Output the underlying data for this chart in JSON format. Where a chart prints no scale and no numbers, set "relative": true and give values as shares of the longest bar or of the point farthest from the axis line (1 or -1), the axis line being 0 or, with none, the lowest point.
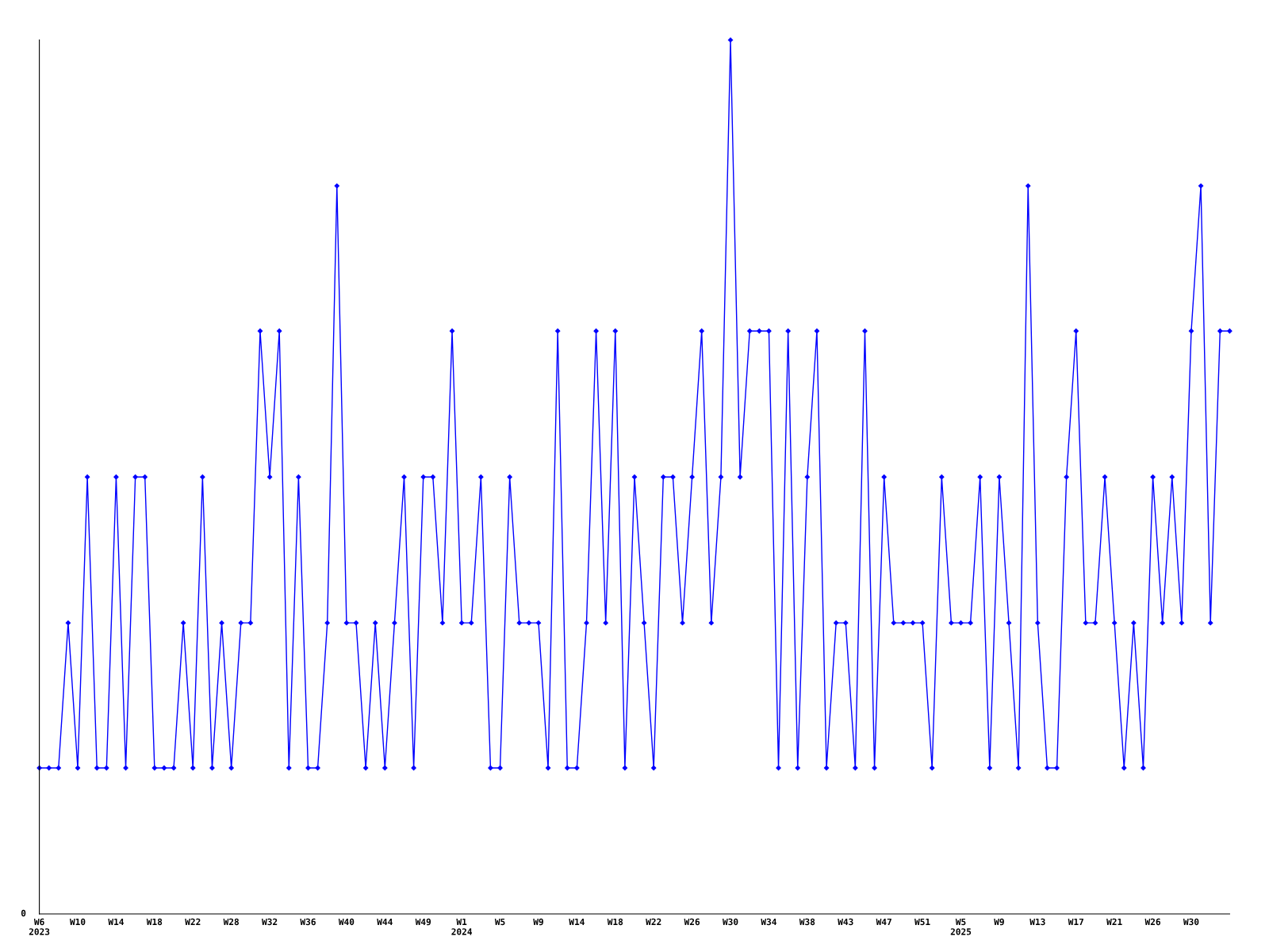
{
  "chart_data": {
    "type": "line",
    "relative": true,
    "color": "#0000ff",
    "marker": "diamond",
    "line_style": "solid",
    "grid": false,
    "legend": false,
    "annotations": [
      "0"
    ],
    "categories": [
      "W6\n2023",
      null,
      null,
      null,
      "W10",
      null,
      null,
      null,
      "W14",
      null,
      null,
      null,
      "W18",
      null,
      null,
      null,
      "W22",
      null,
      null,
      null,
      "W28",
      null,
      null,
      null,
      "W32",
      null,
      null,
      null,
      "W36",
      null,
      null,
      null,
      "W40",
      null,
      null,
      null,
      "W44",
      null,
      null,
      null,
      "W49",
      null,
      null,
      null,
      "W1\n2024",
      null,
      null,
      null,
      "W5",
      null,
      null,
      null,
      "W9",
      null,
      null,
      null,
      "W14",
      null,
      null,
      null,
      "W18",
      null,
      null,
      null,
      "W22",
      null,
      null,
      null,
      "W26",
      null,
      null,
      null,
      "W30",
      null,
      null,
      null,
      "W34",
      null,
      null,
      null,
      "W38",
      null,
      null,
      null,
      "W43",
      null,
      null,
      null,
      "W47",
      null,
      null,
      null,
      "W51",
      null,
      null,
      null,
      "W5\n2025",
      null,
      null,
      null,
      "W9",
      null,
      null,
      null,
      "W13",
      null,
      null,
      null,
      "W17",
      null,
      null,
      null,
      "W21",
      null,
      null,
      null,
      "W26",
      null,
      null,
      null,
      "W30",
      null,
      null,
      null,
      null
    ],
    "values": [
      0.167,
      0.167,
      0.167,
      0.333,
      0.167,
      0.5,
      0.167,
      0.167,
      0.5,
      0.167,
      0.5,
      0.5,
      0.167,
      0.167,
      0.167,
      0.333,
      0.167,
      0.5,
      0.167,
      0.333,
      0.167,
      0.333,
      0.333,
      0.667,
      0.5,
      0.667,
      0.167,
      0.5,
      0.167,
      0.167,
      0.333,
      0.833,
      0.333,
      0.333,
      0.167,
      0.333,
      0.167,
      0.333,
      0.5,
      0.167,
      0.5,
      0.5,
      0.333,
      0.667,
      0.333,
      0.333,
      0.5,
      0.167,
      0.167,
      0.5,
      0.333,
      0.333,
      0.333,
      0.167,
      0.667,
      0.167,
      0.167,
      0.333,
      0.667,
      0.333,
      0.667,
      0.167,
      0.5,
      0.333,
      0.167,
      0.5,
      0.5,
      0.333,
      0.5,
      0.667,
      0.333,
      0.5,
      1,
      0.5,
      0.667,
      0.667,
      0.667,
      0.167,
      0.667,
      0.167,
      0.5,
      0.667,
      0.167,
      0.333,
      0.333,
      0.167,
      0.667,
      0.167,
      0.5,
      0.333,
      0.333,
      0.333,
      0.333,
      0.167,
      0.5,
      0.333,
      0.333,
      0.333,
      0.5,
      0.167,
      0.5,
      0.333,
      0.167,
      0.833,
      0.333,
      0.167,
      0.167,
      0.5,
      0.667,
      0.333,
      0.333,
      0.5,
      0.333,
      0.167,
      0.333,
      0.167,
      0.5,
      0.333,
      0.5,
      0.333,
      0.667,
      0.833,
      0.333,
      0.667,
      0.667
    ]
  }
}
